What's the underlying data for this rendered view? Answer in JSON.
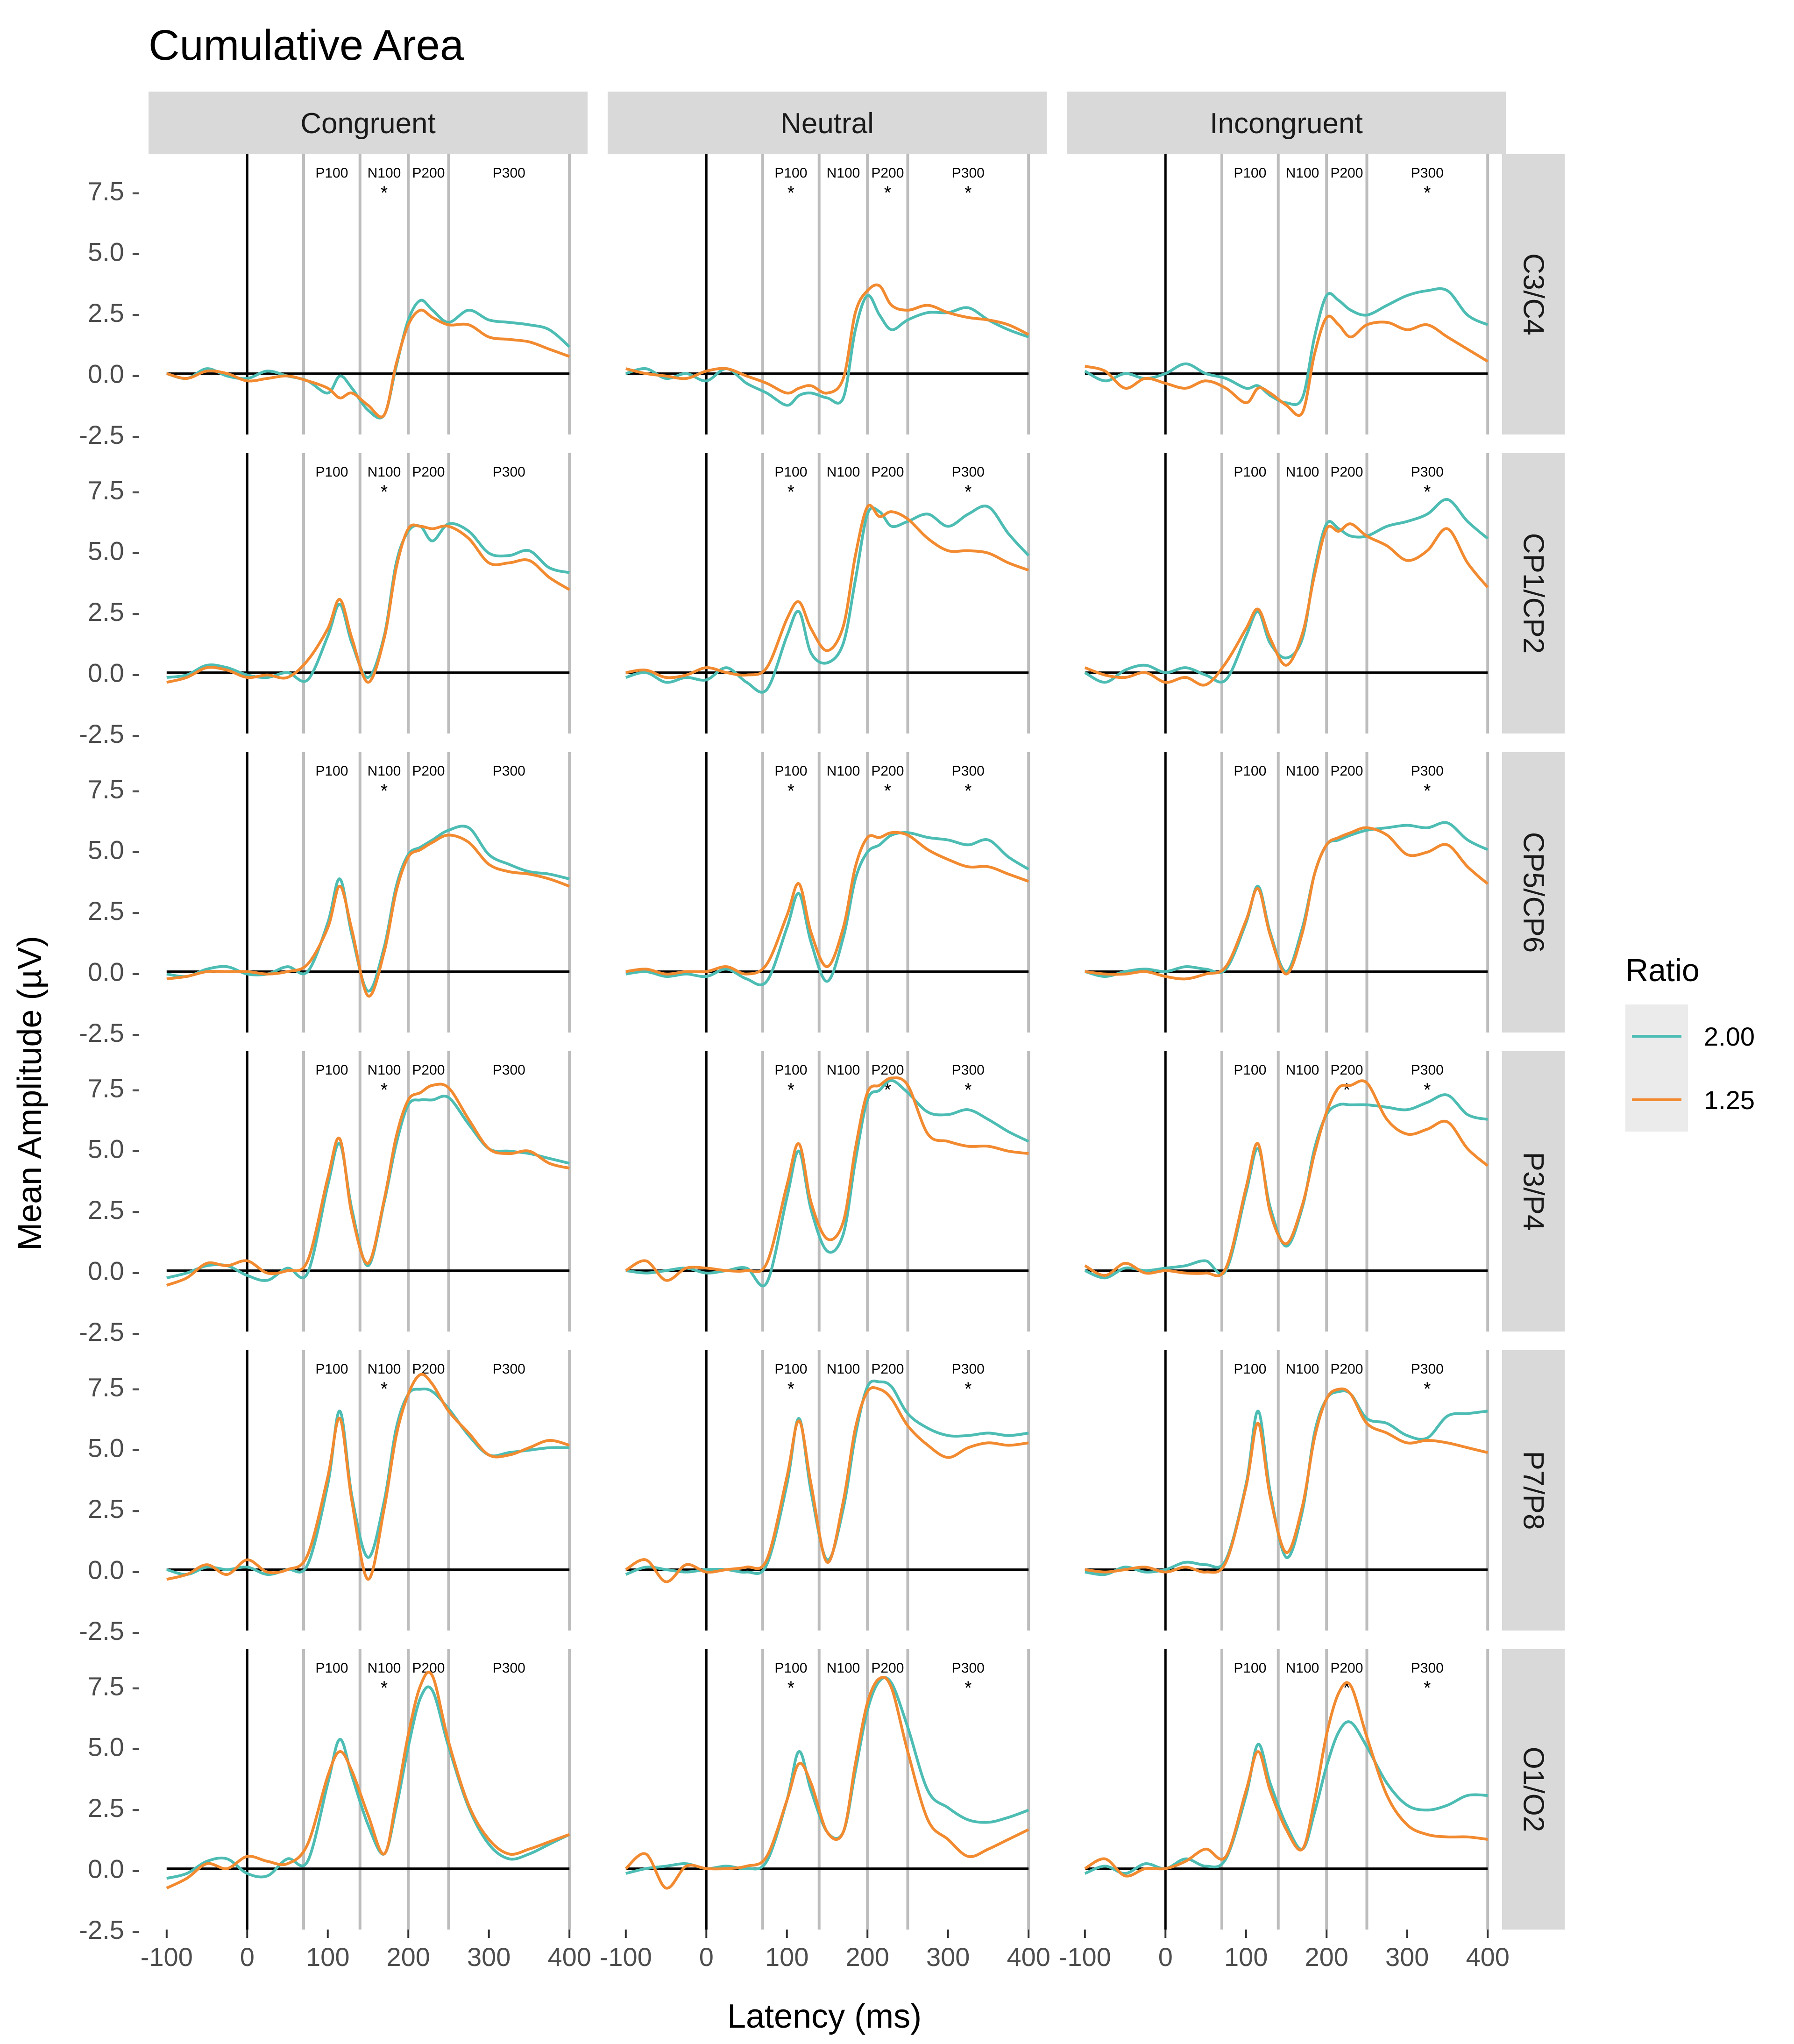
{
  "chart_data": {
    "type": "line",
    "title": "Cumulative Area",
    "xlabel": "Latency (ms)",
    "ylabel": "Mean Amplitude (µV)",
    "xlim": [
      -100,
      400
    ],
    "ylim": [
      -2.5,
      9.0
    ],
    "x_ticks": [
      -100,
      0,
      100,
      200,
      300,
      400
    ],
    "x_tick_labels": [
      "-100",
      "0",
      "100",
      "200",
      "300",
      "400"
    ],
    "y_ticks": [
      -2.5,
      0.0,
      2.5,
      5.0,
      7.5
    ],
    "y_tick_labels": [
      "-2.5 -",
      "0.0 -",
      "2.5 -",
      "5.0 -",
      "7.5 -"
    ],
    "columns": [
      "Congruent",
      "Neutral",
      "Incongruent"
    ],
    "rows": [
      "C3/C4",
      "CP1/CP2",
      "CP5/CP6",
      "P3/P4",
      "P7/P8",
      "O1/O2"
    ],
    "component_bounds_ms": [
      70,
      140,
      200,
      250,
      400
    ],
    "components": [
      {
        "label": "P100",
        "x": 105
      },
      {
        "label": "N100",
        "x": 170
      },
      {
        "label": "P200",
        "x": 225
      },
      {
        "label": "P300",
        "x": 325
      }
    ],
    "significance_marker": "*",
    "significance": [
      [
        [
          "N100"
        ],
        [
          "P100",
          "P200",
          "P300"
        ],
        [
          "P300"
        ]
      ],
      [
        [
          "N100"
        ],
        [
          "P100",
          "P300"
        ],
        [
          "P300"
        ]
      ],
      [
        [
          "N100"
        ],
        [
          "P100",
          "P200",
          "P300"
        ],
        [
          "P300"
        ]
      ],
      [
        [
          "N100"
        ],
        [
          "P100",
          "P200",
          "P300"
        ],
        [
          "P200",
          "P300"
        ]
      ],
      [
        [
          "N100"
        ],
        [
          "P100",
          "P300"
        ],
        [
          "P300"
        ]
      ],
      [
        [
          "N100"
        ],
        [
          "P100",
          "P300"
        ],
        [
          "P200",
          "P300"
        ]
      ]
    ],
    "legend": {
      "title": "Ratio",
      "position": "right",
      "entries": [
        {
          "name": "2.00",
          "color": "#4dbdb4"
        },
        {
          "name": "1.25",
          "color": "#f28a30"
        }
      ]
    },
    "x": [
      -100,
      -75,
      -50,
      -25,
      0,
      25,
      50,
      75,
      100,
      115,
      130,
      150,
      170,
      185,
      200,
      215,
      230,
      250,
      275,
      300,
      325,
      350,
      375,
      400
    ],
    "panels": [
      [
        {
          "s200": [
            0.0,
            -0.2,
            0.2,
            -0.1,
            -0.2,
            0.1,
            -0.1,
            -0.3,
            -0.8,
            -0.1,
            -0.6,
            -1.5,
            -1.7,
            0.3,
            2.2,
            3.0,
            2.6,
            2.1,
            2.6,
            2.2,
            2.1,
            2.0,
            1.8,
            1.1
          ],
          "s125": [
            0.0,
            -0.2,
            0.1,
            0.0,
            -0.3,
            -0.2,
            -0.1,
            -0.3,
            -0.6,
            -1.0,
            -0.8,
            -1.3,
            -1.7,
            0.4,
            2.0,
            2.6,
            2.3,
            2.0,
            2.0,
            1.5,
            1.4,
            1.3,
            1.0,
            0.7
          ]
        },
        {
          "s200": [
            0.0,
            0.2,
            -0.2,
            0.0,
            -0.3,
            0.2,
            -0.4,
            -0.8,
            -1.3,
            -0.9,
            -0.8,
            -1.0,
            -1.0,
            1.8,
            3.2,
            2.4,
            1.8,
            2.2,
            2.5,
            2.5,
            2.7,
            2.2,
            1.8,
            1.5
          ],
          "s125": [
            0.2,
            0.0,
            -0.1,
            -0.2,
            0.1,
            0.2,
            -0.1,
            -0.4,
            -0.8,
            -0.6,
            -0.5,
            -0.8,
            -0.2,
            2.5,
            3.4,
            3.6,
            2.8,
            2.6,
            2.8,
            2.5,
            2.3,
            2.2,
            2.0,
            1.6
          ]
        },
        {
          "s200": [
            0.1,
            -0.3,
            0.0,
            -0.2,
            0.0,
            0.4,
            0.0,
            -0.2,
            -0.6,
            -0.5,
            -0.9,
            -1.2,
            -1.0,
            1.5,
            3.2,
            3.0,
            2.6,
            2.4,
            2.8,
            3.2,
            3.4,
            3.4,
            2.4,
            2.0
          ],
          "s125": [
            0.3,
            0.1,
            -0.6,
            -0.2,
            -0.4,
            -0.6,
            -0.3,
            -0.6,
            -1.2,
            -0.6,
            -0.8,
            -1.3,
            -1.6,
            0.8,
            2.3,
            2.0,
            1.5,
            2.0,
            2.1,
            1.8,
            2.0,
            1.5,
            1.0,
            0.5
          ]
        }
      ],
      [
        {
          "s200": [
            -0.2,
            -0.1,
            0.3,
            0.2,
            -0.1,
            -0.2,
            0.0,
            -0.3,
            1.5,
            2.8,
            1.2,
            -0.2,
            1.5,
            4.5,
            5.8,
            6.0,
            5.4,
            6.1,
            5.8,
            4.9,
            4.8,
            5.0,
            4.3,
            4.1
          ],
          "s125": [
            -0.4,
            -0.2,
            0.2,
            0.1,
            -0.2,
            -0.1,
            -0.2,
            0.5,
            1.8,
            3.0,
            1.4,
            -0.4,
            1.4,
            4.3,
            5.9,
            6.0,
            5.9,
            6.0,
            5.5,
            4.5,
            4.5,
            4.6,
            3.9,
            3.4
          ]
        },
        {
          "s200": [
            -0.2,
            0.0,
            -0.4,
            -0.2,
            -0.3,
            0.2,
            -0.4,
            -0.7,
            1.5,
            2.5,
            0.8,
            0.4,
            1.2,
            3.8,
            6.5,
            6.6,
            6.0,
            6.2,
            6.5,
            6.0,
            6.5,
            6.8,
            5.7,
            4.8
          ],
          "s125": [
            0.0,
            0.1,
            -0.2,
            -0.1,
            0.2,
            0.0,
            -0.1,
            0.2,
            2.2,
            2.9,
            1.8,
            0.9,
            1.9,
            4.8,
            6.8,
            6.4,
            6.6,
            6.3,
            5.5,
            5.0,
            5.0,
            4.9,
            4.5,
            4.2
          ]
        },
        {
          "s200": [
            0.0,
            -0.4,
            0.1,
            0.3,
            0.0,
            0.2,
            -0.1,
            -0.3,
            1.5,
            2.5,
            1.2,
            0.6,
            1.4,
            4.2,
            6.1,
            5.9,
            5.6,
            5.6,
            6.0,
            6.2,
            6.5,
            7.1,
            6.2,
            5.5
          ],
          "s125": [
            0.2,
            -0.1,
            -0.2,
            0.0,
            -0.4,
            -0.2,
            -0.5,
            0.4,
            1.8,
            2.6,
            1.4,
            0.3,
            1.6,
            4.0,
            5.9,
            5.8,
            6.1,
            5.6,
            5.2,
            4.6,
            5.0,
            5.9,
            4.5,
            3.5
          ]
        }
      ],
      [
        {
          "s200": [
            -0.1,
            -0.2,
            0.1,
            0.2,
            -0.1,
            -0.1,
            0.2,
            0.0,
            2.0,
            3.8,
            1.5,
            -0.8,
            1.0,
            3.5,
            4.8,
            5.1,
            5.4,
            5.8,
            5.9,
            4.8,
            4.4,
            4.1,
            4.0,
            3.8
          ],
          "s125": [
            -0.3,
            -0.2,
            0.0,
            0.0,
            0.0,
            -0.1,
            0.0,
            0.3,
            1.8,
            3.5,
            1.7,
            -1.0,
            0.8,
            3.3,
            4.7,
            5.0,
            5.3,
            5.6,
            5.3,
            4.4,
            4.1,
            4.0,
            3.8,
            3.5
          ]
        },
        {
          "s200": [
            -0.1,
            0.0,
            -0.2,
            -0.1,
            -0.2,
            0.1,
            -0.3,
            -0.4,
            1.8,
            3.2,
            1.2,
            -0.4,
            1.4,
            3.8,
            4.9,
            5.2,
            5.6,
            5.7,
            5.5,
            5.4,
            5.2,
            5.4,
            4.7,
            4.2
          ],
          "s125": [
            0.0,
            0.1,
            -0.1,
            0.0,
            0.0,
            0.2,
            -0.1,
            0.3,
            2.3,
            3.6,
            1.6,
            0.2,
            1.8,
            4.3,
            5.5,
            5.5,
            5.7,
            5.6,
            5.0,
            4.6,
            4.3,
            4.3,
            4.0,
            3.7
          ]
        },
        {
          "s200": [
            0.0,
            -0.2,
            0.0,
            0.1,
            0.0,
            0.2,
            0.1,
            0.1,
            2.0,
            3.5,
            1.6,
            0.0,
            1.8,
            4.0,
            5.2,
            5.4,
            5.6,
            5.8,
            5.9,
            6.0,
            5.9,
            6.1,
            5.4,
            5.0
          ],
          "s125": [
            0.0,
            -0.1,
            -0.1,
            0.0,
            -0.2,
            -0.3,
            -0.1,
            0.2,
            2.1,
            3.4,
            1.5,
            -0.1,
            1.6,
            4.0,
            5.2,
            5.5,
            5.7,
            5.9,
            5.6,
            4.8,
            4.9,
            5.2,
            4.3,
            3.6
          ]
        }
      ],
      [
        {
          "s200": [
            -0.3,
            -0.1,
            0.2,
            0.2,
            -0.2,
            -0.4,
            0.1,
            -0.1,
            3.5,
            5.2,
            2.5,
            0.2,
            2.8,
            5.2,
            6.8,
            7.0,
            7.0,
            7.1,
            6.0,
            5.0,
            4.9,
            4.8,
            4.6,
            4.4
          ],
          "s125": [
            -0.6,
            -0.3,
            0.3,
            0.2,
            0.4,
            -0.1,
            0.0,
            0.4,
            3.8,
            5.4,
            2.3,
            0.3,
            2.9,
            5.5,
            7.0,
            7.3,
            7.6,
            7.5,
            6.2,
            5.0,
            4.8,
            4.9,
            4.4,
            4.2
          ]
        },
        {
          "s200": [
            0.0,
            -0.1,
            0.0,
            0.1,
            -0.1,
            0.0,
            0.1,
            -0.5,
            3.0,
            4.9,
            2.5,
            0.8,
            1.5,
            4.5,
            7.0,
            7.4,
            7.8,
            7.3,
            6.5,
            6.4,
            6.6,
            6.2,
            5.7,
            5.3
          ],
          "s125": [
            0.0,
            0.4,
            -0.4,
            0.1,
            0.1,
            0.0,
            0.0,
            0.3,
            3.5,
            5.2,
            2.8,
            1.3,
            2.0,
            5.0,
            7.3,
            7.6,
            7.9,
            7.6,
            5.6,
            5.3,
            5.1,
            5.1,
            4.9,
            4.8
          ]
        },
        {
          "s200": [
            0.0,
            -0.3,
            0.1,
            0.0,
            0.1,
            0.2,
            0.4,
            0.0,
            3.2,
            5.0,
            2.6,
            1.0,
            2.6,
            5.0,
            6.4,
            6.8,
            6.8,
            6.8,
            6.7,
            6.6,
            6.9,
            7.2,
            6.4,
            6.2
          ],
          "s125": [
            0.2,
            -0.2,
            0.3,
            -0.1,
            0.0,
            -0.1,
            -0.1,
            0.1,
            3.4,
            5.2,
            2.4,
            1.1,
            2.7,
            4.8,
            6.5,
            7.5,
            7.6,
            7.7,
            6.2,
            5.6,
            5.8,
            6.1,
            5.0,
            4.3
          ]
        }
      ],
      [
        {
          "s200": [
            0.0,
            -0.2,
            0.1,
            0.0,
            0.1,
            -0.2,
            0.0,
            0.2,
            3.5,
            6.5,
            3.0,
            0.5,
            2.8,
            5.8,
            7.2,
            7.4,
            7.3,
            6.6,
            5.5,
            4.7,
            4.8,
            4.9,
            5.0,
            5.0
          ],
          "s125": [
            -0.4,
            -0.2,
            0.2,
            -0.2,
            0.4,
            -0.1,
            0.0,
            0.6,
            3.8,
            6.2,
            2.8,
            -0.4,
            2.5,
            5.5,
            7.2,
            8.0,
            7.6,
            6.5,
            5.6,
            4.7,
            4.7,
            5.0,
            5.3,
            5.1
          ]
        },
        {
          "s200": [
            -0.2,
            0.1,
            0.0,
            -0.1,
            0.0,
            0.0,
            -0.1,
            0.2,
            3.5,
            6.2,
            3.2,
            0.4,
            2.5,
            5.5,
            7.5,
            7.7,
            7.5,
            6.4,
            5.8,
            5.5,
            5.5,
            5.6,
            5.5,
            5.6
          ],
          "s125": [
            0.0,
            0.4,
            -0.5,
            0.2,
            -0.1,
            0.0,
            0.1,
            0.4,
            3.8,
            6.1,
            3.5,
            0.3,
            2.8,
            5.8,
            7.3,
            7.4,
            7.0,
            5.9,
            5.1,
            4.6,
            5.0,
            5.2,
            5.1,
            5.2
          ]
        },
        {
          "s200": [
            -0.1,
            -0.2,
            0.1,
            -0.1,
            0.0,
            0.3,
            0.2,
            0.4,
            3.5,
            6.5,
            3.2,
            0.5,
            2.4,
            5.6,
            7.0,
            7.3,
            7.2,
            6.2,
            6.0,
            5.5,
            5.4,
            6.3,
            6.4,
            6.5
          ],
          "s125": [
            0.0,
            -0.1,
            0.0,
            0.1,
            -0.1,
            0.1,
            -0.1,
            0.3,
            3.4,
            6.0,
            3.0,
            0.7,
            2.6,
            5.4,
            7.0,
            7.4,
            7.2,
            6.0,
            5.6,
            5.2,
            5.3,
            5.2,
            5.0,
            4.8
          ]
        }
      ],
      [
        {
          "s200": [
            -0.4,
            -0.2,
            0.3,
            0.4,
            -0.2,
            -0.3,
            0.4,
            0.3,
            3.5,
            5.3,
            3.8,
            1.8,
            0.6,
            2.5,
            5.0,
            7.0,
            7.3,
            5.0,
            2.5,
            1.0,
            0.4,
            0.6,
            1.0,
            1.4
          ],
          "s125": [
            -0.8,
            -0.4,
            0.2,
            0.0,
            0.5,
            0.3,
            0.2,
            1.0,
            3.8,
            4.8,
            4.0,
            2.2,
            0.6,
            2.8,
            5.5,
            7.5,
            7.9,
            5.2,
            2.6,
            1.2,
            0.6,
            0.8,
            1.1,
            1.4
          ]
        },
        {
          "s200": [
            -0.2,
            0.0,
            0.1,
            0.2,
            0.0,
            0.1,
            0.0,
            0.3,
            2.8,
            4.8,
            3.2,
            1.5,
            1.5,
            4.0,
            6.5,
            7.7,
            7.6,
            5.8,
            3.2,
            2.5,
            2.0,
            1.9,
            2.1,
            2.4
          ],
          "s125": [
            0.0,
            0.6,
            -0.8,
            0.1,
            0.0,
            0.0,
            0.1,
            0.5,
            2.8,
            4.3,
            3.5,
            1.5,
            1.5,
            4.3,
            6.8,
            7.8,
            7.4,
            4.8,
            2.0,
            1.2,
            0.5,
            0.8,
            1.2,
            1.6
          ]
        },
        {
          "s200": [
            -0.2,
            0.1,
            -0.2,
            0.2,
            0.0,
            0.4,
            0.1,
            0.4,
            3.0,
            5.1,
            3.5,
            1.8,
            0.8,
            2.3,
            4.2,
            5.6,
            6.0,
            5.0,
            3.5,
            2.6,
            2.4,
            2.6,
            3.0,
            3.0
          ],
          "s125": [
            0.0,
            0.4,
            -0.3,
            0.0,
            0.0,
            0.3,
            0.8,
            0.5,
            3.2,
            4.8,
            3.2,
            1.6,
            0.8,
            2.8,
            5.5,
            7.2,
            7.5,
            5.4,
            3.0,
            1.8,
            1.4,
            1.3,
            1.3,
            1.2
          ]
        }
      ]
    ]
  }
}
